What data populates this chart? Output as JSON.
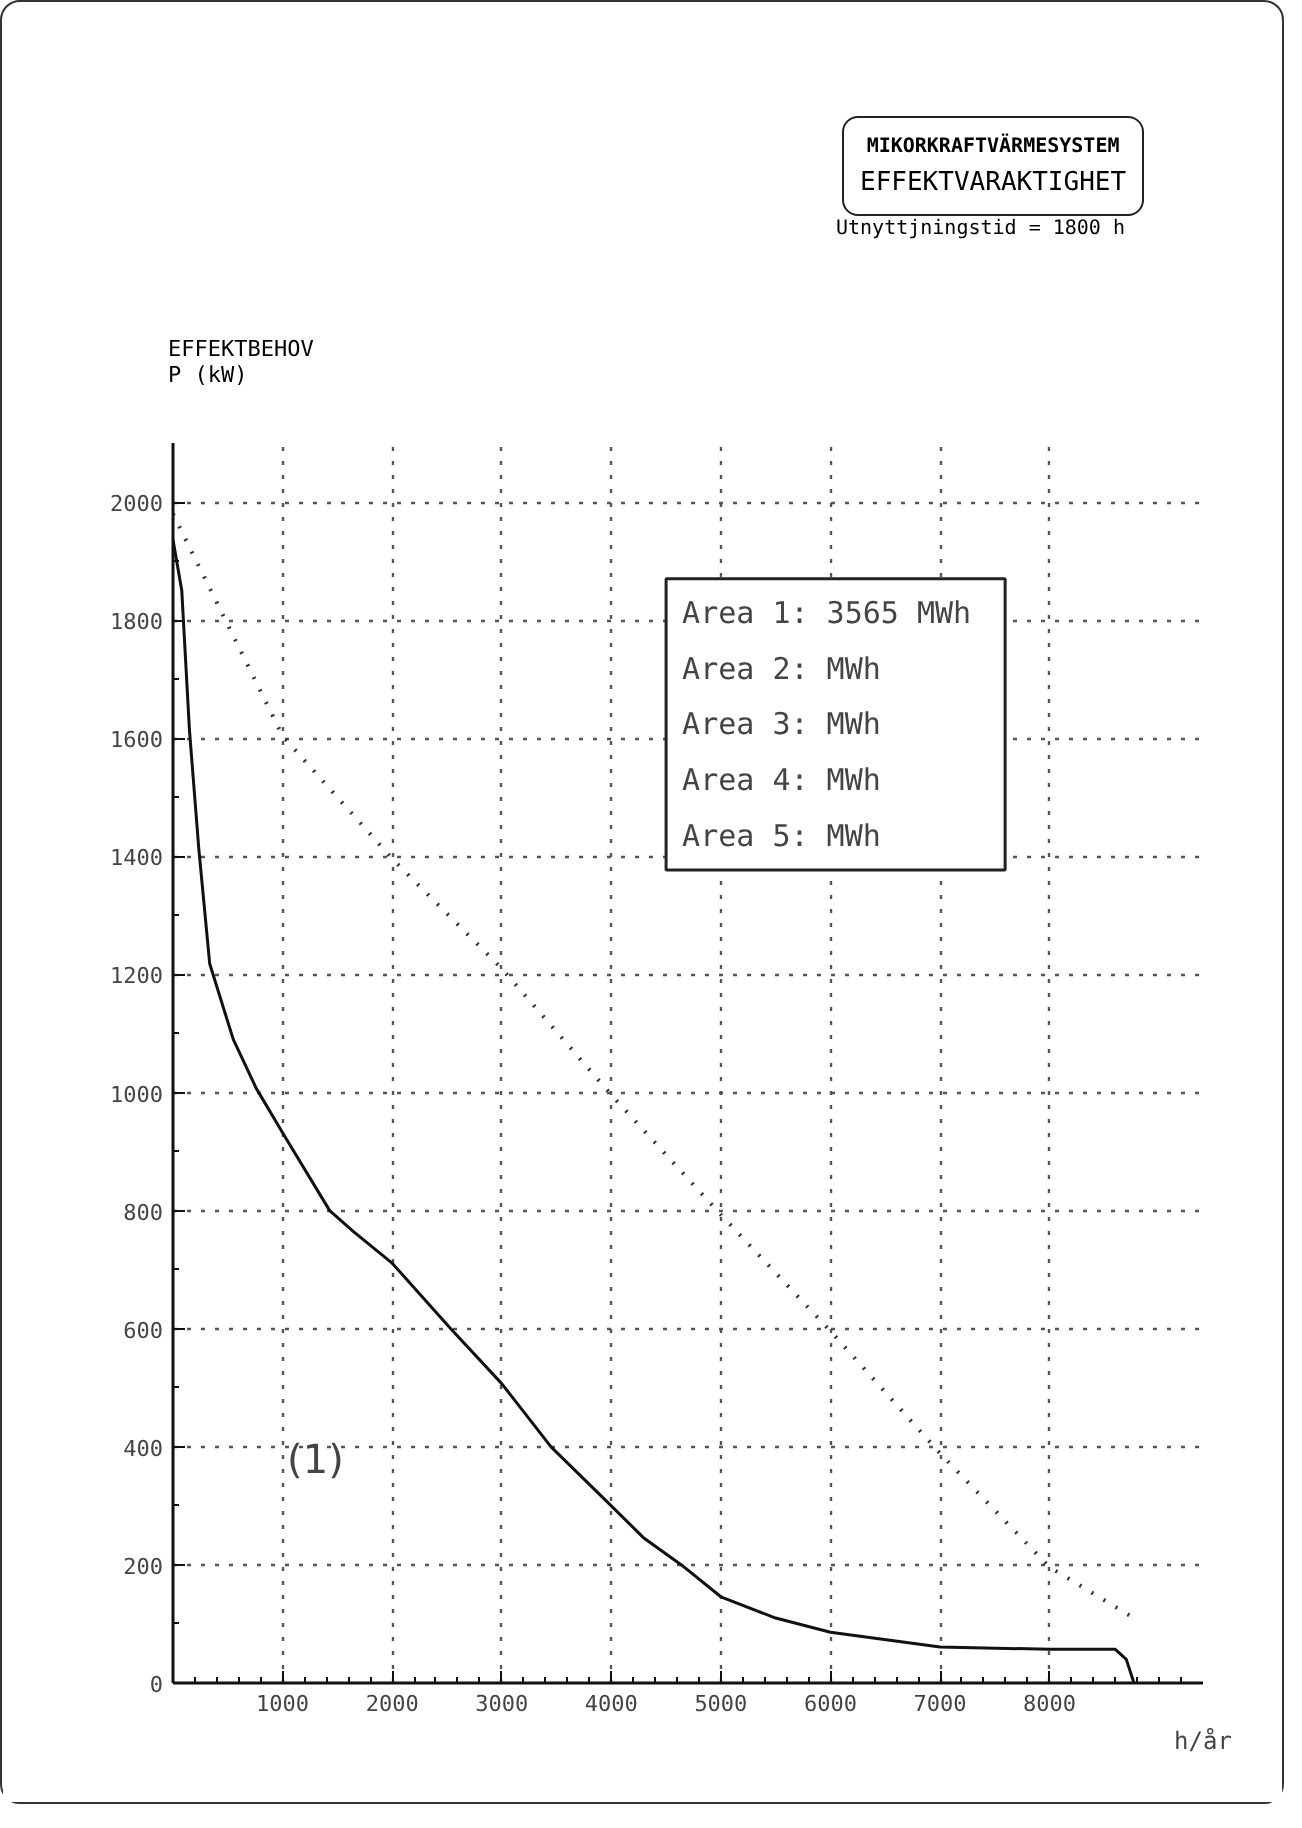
{
  "chart_data": {
    "type": "line",
    "title": "MIKORKRAFTVÄRMESYSTEM",
    "subtitle": "EFFEKTVARAKTIGHET",
    "ylabel": "EFFEKTBEHOV\nP (kW)",
    "xlabel": "h/år",
    "xlim": [
      0,
      9400
    ],
    "ylim": [
      0,
      2100
    ],
    "xticks": [
      1000,
      2000,
      3000,
      4000,
      5000,
      6000,
      7000,
      8000
    ],
    "yticks": [
      0,
      200,
      400,
      600,
      800,
      1000,
      1200,
      1400,
      1600,
      1800,
      2000
    ],
    "grid": true,
    "series": [
      {
        "color": "#111111",
        "line_style": "solid",
        "x": [
          0,
          80,
          150,
          235,
          335,
          550,
          760,
          1000,
          1430,
          1650,
          2000,
          2535,
          3000,
          3450,
          4000,
          4300,
          4640,
          5000,
          5500,
          6000,
          7000,
          8000,
          8600,
          8700,
          8770
        ],
        "values": [
          1936,
          1850,
          1614,
          1414,
          1218,
          1090,
          1007,
          932,
          800,
          764,
          711,
          600,
          507,
          400,
          300,
          245,
          200,
          146,
          110,
          86,
          61,
          57,
          57,
          40,
          0
        ]
      },
      {
        "color": "#333333",
        "line_style": "dotted",
        "x": [
          0,
          1000,
          2000,
          3000,
          4000,
          5000,
          6000,
          7000,
          8000,
          8770
        ],
        "values": [
          1980,
          1604,
          1396,
          1210,
          996,
          793,
          596,
          389,
          196,
          110
        ]
      }
    ],
    "annotations": [
      "Utnyttjningstid = 1800 h",
      "Area 1:  3565 MWh",
      "Area 2:       MWh",
      "Area 3:       MWh",
      "Area 4:       MWh",
      "Area 5:       MWh",
      "(1)"
    ]
  }
}
